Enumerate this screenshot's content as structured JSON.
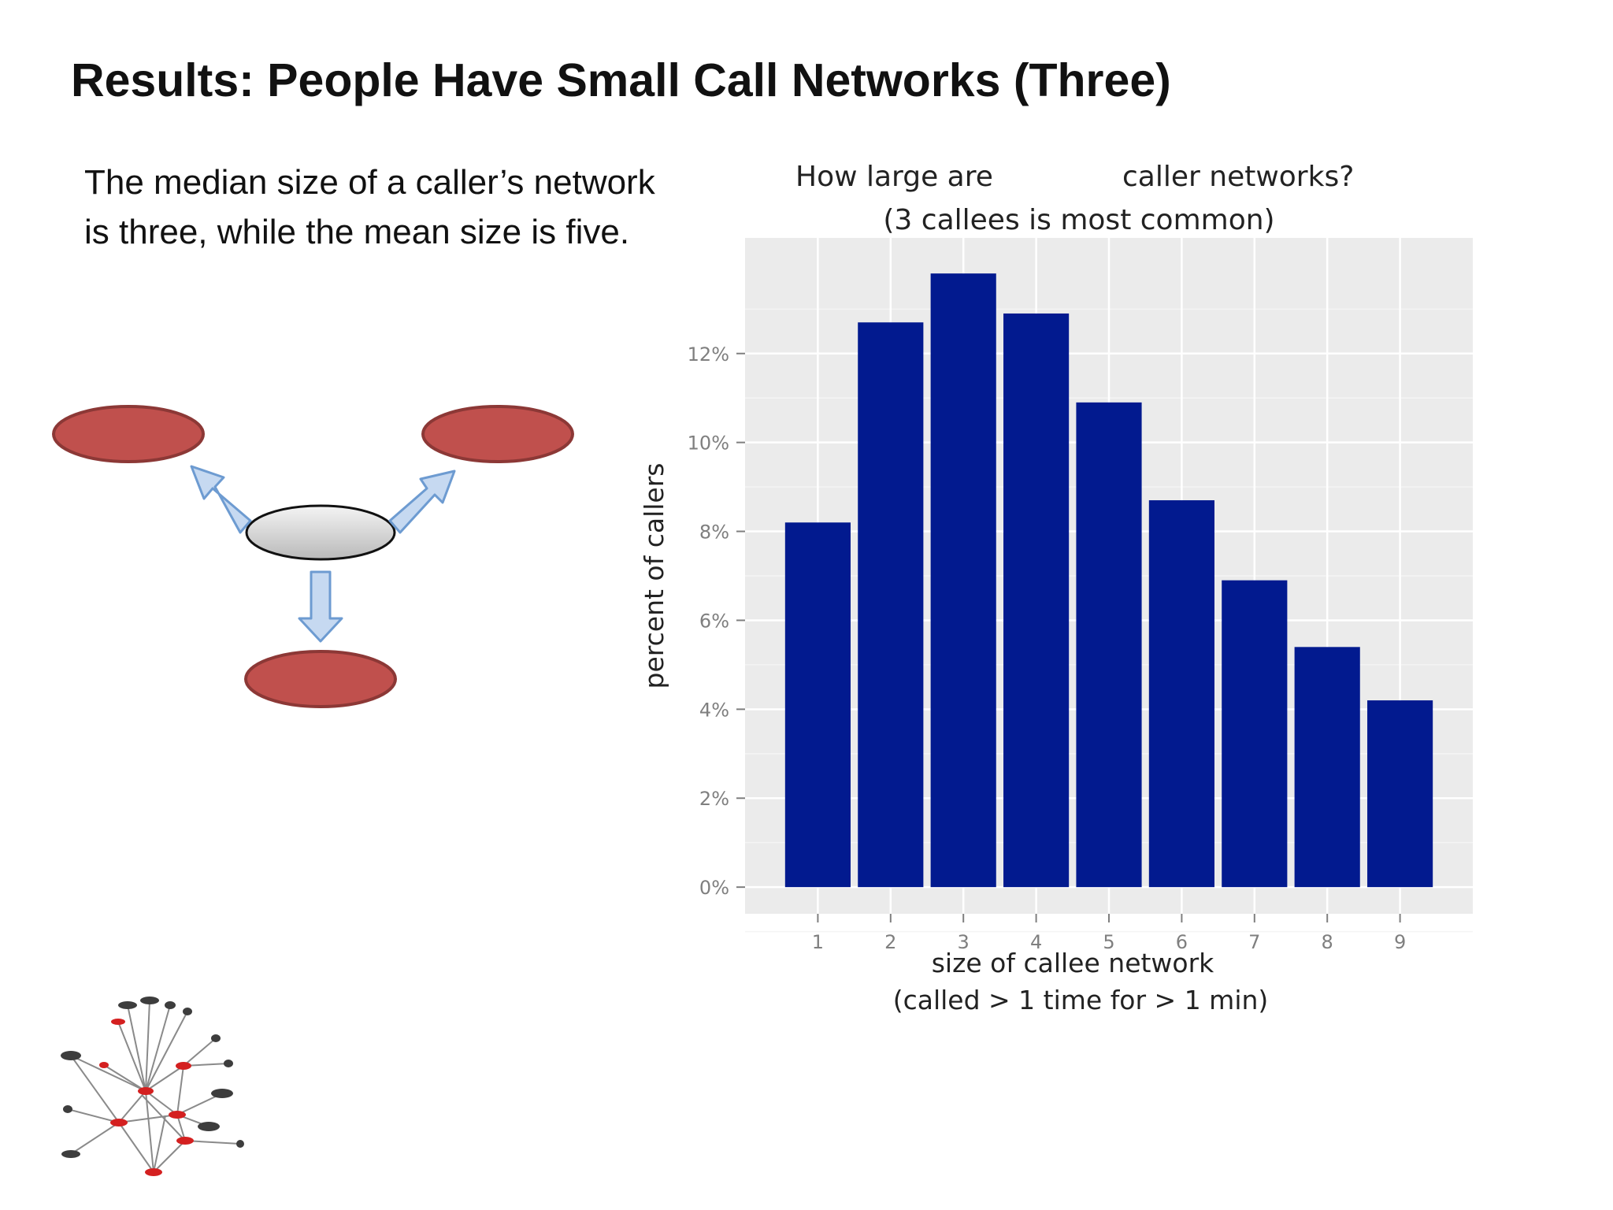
{
  "slide": {
    "title": "Results:  People Have Small Call Networks (Three)",
    "body_lines": [
      "The median size of a caller’s network",
      "is three,  while the mean size is five."
    ]
  },
  "colors": {
    "bar": "#021a8f",
    "panel": "#ebebeb",
    "grid": "#ffffff",
    "node_red": "#c0504d",
    "node_red_border": "#8c3836",
    "arrow_fill": "#c6d9f1",
    "arrow_stroke": "#6d9bd1"
  },
  "chart_data": {
    "type": "bar",
    "title_left": "How large are",
    "title_right": "caller networks?",
    "subtitle": "(3 callees is most common)",
    "xlabel": "size of callee network",
    "xlabel_sub": "(called > 1 time for > 1 min)",
    "ylabel": "percent of callers",
    "categories": [
      "1",
      "2",
      "3",
      "4",
      "5",
      "6",
      "7",
      "8",
      "9"
    ],
    "values": [
      8.2,
      12.7,
      13.8,
      12.9,
      10.9,
      8.7,
      6.9,
      5.4,
      4.2
    ],
    "yticks": [
      0,
      2,
      4,
      6,
      8,
      10,
      12
    ],
    "ytick_labels": [
      "0%",
      "2%",
      "4%",
      "6%",
      "8%",
      "10%",
      "12%"
    ],
    "ylim": [
      -0.6,
      14.6
    ],
    "grid": true,
    "legend": "none"
  }
}
